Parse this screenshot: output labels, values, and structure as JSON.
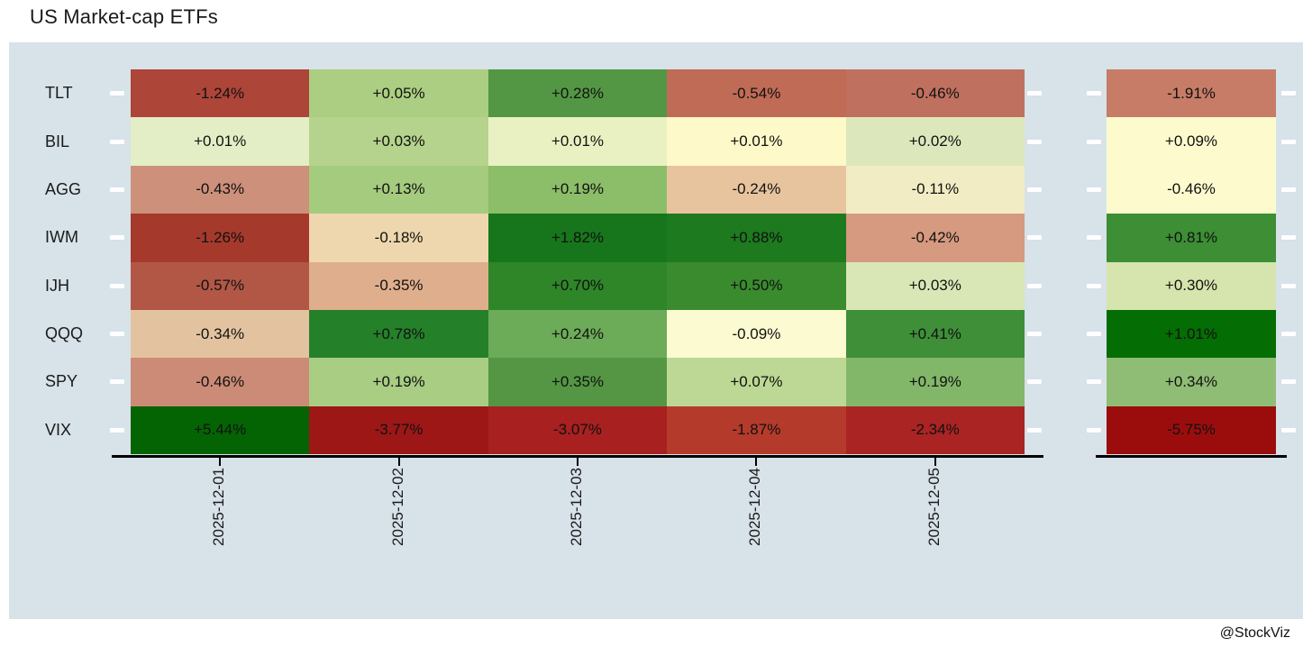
{
  "page": {
    "title": "US Market-cap ETFs",
    "credit": "@StockViz",
    "panel_bg": "#d7e2e9"
  },
  "chart_data": {
    "type": "heatmap",
    "title": "US Market-cap ETFs",
    "colormap": "RdYlGn",
    "legend_position": "none",
    "rows": [
      "TLT",
      "BIL",
      "AGG",
      "IWM",
      "IJH",
      "QQQ",
      "SPY",
      "VIX"
    ],
    "columns": [
      "2025-12-01",
      "2025-12-02",
      "2025-12-03",
      "2025-12-04",
      "2025-12-05"
    ],
    "values": [
      [
        -1.24,
        0.05,
        0.28,
        -0.54,
        -0.46
      ],
      [
        0.01,
        0.03,
        0.01,
        0.01,
        0.02
      ],
      [
        -0.43,
        0.13,
        0.19,
        -0.24,
        -0.11
      ],
      [
        -1.26,
        -0.18,
        1.82,
        0.88,
        -0.42
      ],
      [
        -0.57,
        -0.35,
        0.7,
        0.5,
        0.03
      ],
      [
        -0.34,
        0.78,
        0.24,
        -0.09,
        0.41
      ],
      [
        -0.46,
        0.19,
        0.35,
        0.07,
        0.19
      ],
      [
        5.44,
        -3.77,
        -3.07,
        -1.87,
        -2.34
      ]
    ],
    "labels": [
      [
        "-1.24%",
        "+0.05%",
        "+0.28%",
        "-0.54%",
        "-0.46%"
      ],
      [
        "+0.01%",
        "+0.03%",
        "+0.01%",
        "+0.01%",
        "+0.02%"
      ],
      [
        "-0.43%",
        "+0.13%",
        "+0.19%",
        "-0.24%",
        "-0.11%"
      ],
      [
        "-1.26%",
        "-0.18%",
        "+1.82%",
        "+0.88%",
        "-0.42%"
      ],
      [
        "-0.57%",
        "-0.35%",
        "+0.70%",
        "+0.50%",
        "+0.03%"
      ],
      [
        "-0.34%",
        "+0.78%",
        "+0.24%",
        "-0.09%",
        "+0.41%"
      ],
      [
        "-0.46%",
        "+0.19%",
        "+0.35%",
        "+0.07%",
        "+0.19%"
      ],
      [
        "+5.44%",
        "-3.77%",
        "-3.07%",
        "-1.87%",
        "-2.34%"
      ]
    ],
    "cell_colors": [
      [
        "#ad4538",
        "#abce82",
        "#539744",
        "#c06b56",
        "#c0705f"
      ],
      [
        "#e4eec6",
        "#b5d38c",
        "#e9f1c2",
        "#fdf9c8",
        "#dce8bc"
      ],
      [
        "#cd907a",
        "#a5cb7e",
        "#8cbd68",
        "#e7c49e",
        "#f2ecc4"
      ],
      [
        "#a53a2c",
        "#eed7ae",
        "#17761b",
        "#1d7a1e",
        "#d69a80"
      ],
      [
        "#b25746",
        "#dfae8d",
        "#2e8629",
        "#398b2e",
        "#d9e7b6"
      ],
      [
        "#e3c39f",
        "#25802a",
        "#6cab57",
        "#fcfad1",
        "#3f8f38"
      ],
      [
        "#cc8b76",
        "#a8cd83",
        "#549644",
        "#bdd894",
        "#82b769"
      ],
      [
        "#046404",
        "#9d1717",
        "#a82020",
        "#b43b2c",
        "#aa2423"
      ]
    ],
    "summary": {
      "values": [
        -1.91,
        0.09,
        -0.46,
        0.81,
        0.3,
        1.01,
        0.34,
        -5.75
      ],
      "labels": [
        "-1.91%",
        "+0.09%",
        "-0.46%",
        "+0.81%",
        "+0.30%",
        "+1.01%",
        "+0.34%",
        "-5.75%"
      ],
      "colors": [
        "#c67c66",
        "#fdfbce",
        "#fdfbce",
        "#3d8e35",
        "#d6e4ad",
        "#046d04",
        "#8fbd75",
        "#9b0d0d"
      ]
    }
  }
}
